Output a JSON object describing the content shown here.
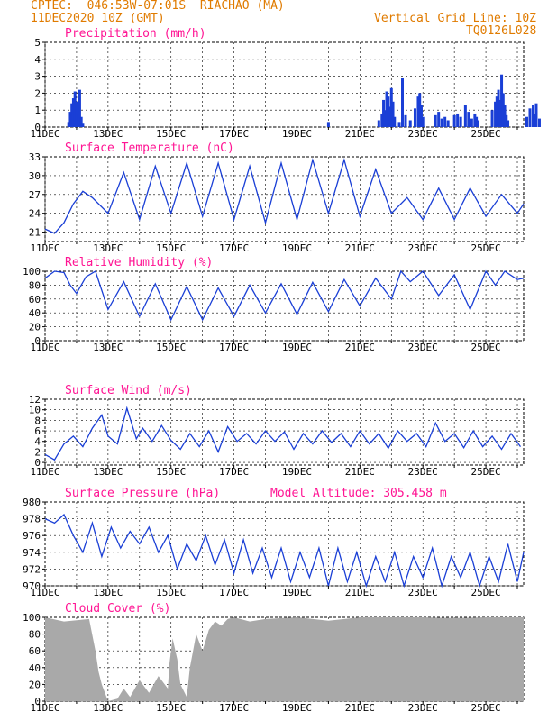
{
  "header": {
    "line1": "CPTEC:  046:53W-07:01S  RIACHAO (MA)",
    "line2": "11DEC2020 10Z (GMT)",
    "right1": "Vertical Grid Line: 10Z",
    "right2": "TQ0126L028"
  },
  "colors": {
    "header": "#e07b00",
    "title": "#ff1493",
    "line": "#1a3fd6",
    "cloud": "#a9a9a9",
    "grid": "#000000"
  },
  "x_axis_labels": [
    "11DEC",
    "13DEC",
    "15DEC",
    "17DEC",
    "19DEC",
    "21DEC",
    "23DEC",
    "25DEC"
  ],
  "chart_data": [
    {
      "type": "bar",
      "title": "Precipitation (mm/h)",
      "ylim": [
        0,
        5
      ],
      "yticks": [
        "0",
        "1",
        "2",
        "3",
        "4",
        "5"
      ],
      "bars": [
        [
          0.75,
          0.3
        ],
        [
          0.8,
          0.9
        ],
        [
          0.85,
          1.4
        ],
        [
          0.9,
          1.7
        ],
        [
          0.95,
          2.1
        ],
        [
          1.0,
          1.5
        ],
        [
          1.05,
          0.8
        ],
        [
          1.1,
          2.2
        ],
        [
          1.15,
          0.6
        ],
        [
          1.2,
          0.2
        ],
        [
          9.0,
          0.3
        ],
        [
          10.6,
          0.4
        ],
        [
          10.7,
          0.8
        ],
        [
          10.75,
          1.6
        ],
        [
          10.8,
          1.0
        ],
        [
          10.85,
          2.1
        ],
        [
          10.9,
          1.8
        ],
        [
          10.95,
          1.2
        ],
        [
          11.0,
          2.3
        ],
        [
          11.05,
          1.5
        ],
        [
          11.1,
          0.6
        ],
        [
          11.25,
          0.3
        ],
        [
          11.35,
          2.9
        ],
        [
          11.45,
          0.7
        ],
        [
          11.6,
          0.4
        ],
        [
          11.75,
          1.1
        ],
        [
          11.85,
          1.8
        ],
        [
          11.9,
          2.0
        ],
        [
          11.95,
          1.3
        ],
        [
          12.0,
          0.6
        ],
        [
          12.4,
          0.7
        ],
        [
          12.5,
          0.9
        ],
        [
          12.6,
          0.5
        ],
        [
          12.7,
          0.6
        ],
        [
          12.8,
          0.4
        ],
        [
          13.0,
          0.7
        ],
        [
          13.1,
          0.8
        ],
        [
          13.2,
          0.6
        ],
        [
          13.35,
          1.3
        ],
        [
          13.45,
          0.9
        ],
        [
          13.55,
          0.5
        ],
        [
          13.65,
          0.8
        ],
        [
          13.7,
          0.6
        ],
        [
          13.75,
          0.4
        ],
        [
          14.2,
          1.0
        ],
        [
          14.3,
          1.5
        ],
        [
          14.35,
          1.8
        ],
        [
          14.4,
          2.2
        ],
        [
          14.45,
          1.6
        ],
        [
          14.5,
          3.1
        ],
        [
          14.55,
          2.0
        ],
        [
          14.6,
          1.3
        ],
        [
          14.65,
          0.7
        ],
        [
          14.7,
          0.4
        ],
        [
          15.3,
          0.6
        ],
        [
          15.4,
          1.1
        ],
        [
          15.5,
          1.3
        ],
        [
          15.55,
          0.8
        ],
        [
          15.6,
          1.4
        ],
        [
          15.7,
          0.5
        ]
      ]
    },
    {
      "type": "line",
      "title": "Surface Temperature (nC)",
      "ylim": [
        19.5,
        33
      ],
      "yticks": [
        "21",
        "24",
        "27",
        "30",
        "33"
      ],
      "x": [
        0.0,
        0.3,
        0.6,
        0.9,
        1.2,
        1.5,
        2.0,
        2.5,
        3.0,
        3.5,
        4.0,
        4.5,
        5.0,
        5.5,
        6.0,
        6.5,
        7.0,
        7.5,
        8.0,
        8.5,
        9.0,
        9.5,
        10.0,
        10.5,
        11.0,
        11.5,
        12.0,
        12.5,
        13.0,
        13.5,
        14.0,
        14.5,
        15.0,
        15.2
      ],
      "y": [
        21.5,
        20.8,
        22.5,
        25.5,
        27.5,
        26.5,
        24,
        30.5,
        23,
        31.5,
        24,
        32,
        23.5,
        32,
        23,
        31.5,
        22.5,
        32,
        23,
        32.5,
        24,
        32.5,
        23.5,
        31,
        24,
        26.5,
        23,
        28,
        23,
        28,
        23.5,
        27,
        24,
        25.5
      ]
    },
    {
      "type": "line",
      "title": "Relative Humidity (%)",
      "ylim": [
        0,
        100
      ],
      "yticks": [
        "0",
        "20",
        "40",
        "60",
        "80",
        "100"
      ],
      "x": [
        0.0,
        0.3,
        0.6,
        0.8,
        1.0,
        1.3,
        1.6,
        2.0,
        2.5,
        3.0,
        3.5,
        4.0,
        4.5,
        5.0,
        5.5,
        6.0,
        6.5,
        7.0,
        7.5,
        8.0,
        8.5,
        9.0,
        9.5,
        10.0,
        10.5,
        11.0,
        11.3,
        11.6,
        12.0,
        12.5,
        13.0,
        13.5,
        14.0,
        14.3,
        14.6,
        15.0,
        15.2
      ],
      "y": [
        90,
        100,
        98,
        80,
        68,
        92,
        100,
        45,
        85,
        35,
        82,
        30,
        78,
        30,
        76,
        35,
        80,
        40,
        82,
        38,
        84,
        42,
        88,
        50,
        90,
        60,
        100,
        85,
        100,
        65,
        95,
        45,
        100,
        80,
        100,
        88,
        90
      ]
    },
    {
      "type": "line",
      "title": "Surface Wind (m/s)",
      "ylim": [
        -0.5,
        12
      ],
      "yticks": [
        "0",
        "2",
        "4",
        "6",
        "8",
        "10",
        "12"
      ],
      "x": [
        0.0,
        0.3,
        0.6,
        0.9,
        1.2,
        1.5,
        1.8,
        2.0,
        2.3,
        2.6,
        2.9,
        3.1,
        3.4,
        3.7,
        4.0,
        4.3,
        4.6,
        4.9,
        5.2,
        5.5,
        5.8,
        6.1,
        6.4,
        6.7,
        7.0,
        7.3,
        7.6,
        7.9,
        8.2,
        8.5,
        8.8,
        9.1,
        9.4,
        9.7,
        10.0,
        10.3,
        10.6,
        10.9,
        11.2,
        11.5,
        11.8,
        12.1,
        12.4,
        12.7,
        13.0,
        13.3,
        13.6,
        13.9,
        14.2,
        14.5,
        14.8,
        15.1
      ],
      "y": [
        1.5,
        0.5,
        3.5,
        5,
        3,
        6.5,
        9,
        5,
        3.5,
        10.3,
        4.5,
        6.5,
        4,
        7,
        4.2,
        2.5,
        5.5,
        3,
        6,
        2,
        6.8,
        4,
        5.5,
        3.5,
        6,
        4,
        5.8,
        2.5,
        5.5,
        3.5,
        6,
        3.8,
        5.5,
        3,
        6,
        3.5,
        5.5,
        2.7,
        6,
        4,
        5.5,
        3,
        7.5,
        4,
        5.5,
        2.8,
        6,
        3,
        5,
        2.5,
        5.5,
        3
      ]
    },
    {
      "type": "line",
      "title": "Surface Pressure (hPa)",
      "annotation": "Model Altitude: 305.458  m",
      "ylim": [
        970,
        980
      ],
      "yticks": [
        "970",
        "972",
        "974",
        "976",
        "978",
        "980"
      ],
      "x": [
        0.0,
        0.3,
        0.6,
        0.9,
        1.2,
        1.5,
        1.8,
        2.1,
        2.4,
        2.7,
        3.0,
        3.3,
        3.6,
        3.9,
        4.2,
        4.5,
        4.8,
        5.1,
        5.4,
        5.7,
        6.0,
        6.3,
        6.6,
        6.9,
        7.2,
        7.5,
        7.8,
        8.1,
        8.4,
        8.7,
        9.0,
        9.3,
        9.6,
        9.9,
        10.2,
        10.5,
        10.8,
        11.1,
        11.4,
        11.7,
        12.0,
        12.3,
        12.6,
        12.9,
        13.2,
        13.5,
        13.8,
        14.1,
        14.4,
        14.7,
        15.0,
        15.2
      ],
      "y": [
        978,
        977.5,
        978.5,
        976,
        974,
        977.5,
        973.5,
        977,
        974.5,
        976.5,
        975,
        977,
        974,
        976,
        972,
        975,
        973,
        976,
        972.5,
        975.5,
        971.5,
        975.5,
        971.5,
        974.5,
        971,
        974.5,
        970.5,
        974,
        971,
        974.5,
        970,
        974.5,
        970.5,
        974,
        970,
        973.5,
        970.5,
        974,
        970,
        973.5,
        971,
        974.5,
        970,
        973.5,
        971,
        974,
        970,
        973.5,
        970.5,
        975,
        970.5,
        974
      ]
    },
    {
      "type": "area",
      "title": "Cloud Cover (%)",
      "ylim": [
        0,
        100
      ],
      "yticks": [
        "0",
        "20",
        "40",
        "60",
        "80",
        "100"
      ],
      "x": [
        0.0,
        0.6,
        1.4,
        1.6,
        1.7,
        1.8,
        2.0,
        2.3,
        2.5,
        2.7,
        3.0,
        3.3,
        3.6,
        3.9,
        3.95,
        4.05,
        4.2,
        4.3,
        4.5,
        4.6,
        4.8,
        5.0,
        5.2,
        5.4,
        5.6,
        5.8,
        6.0,
        6.5,
        7.0,
        8.0,
        9.0,
        10.0,
        11.0,
        12.0,
        13.0,
        14.0,
        15.2
      ],
      "y": [
        100,
        95,
        98,
        60,
        35,
        20,
        0,
        3,
        15,
        5,
        25,
        10,
        30,
        15,
        45,
        75,
        50,
        20,
        5,
        40,
        80,
        60,
        85,
        95,
        90,
        98,
        100,
        95,
        98,
        100,
        96,
        100,
        100,
        100,
        99,
        100,
        100
      ]
    }
  ]
}
